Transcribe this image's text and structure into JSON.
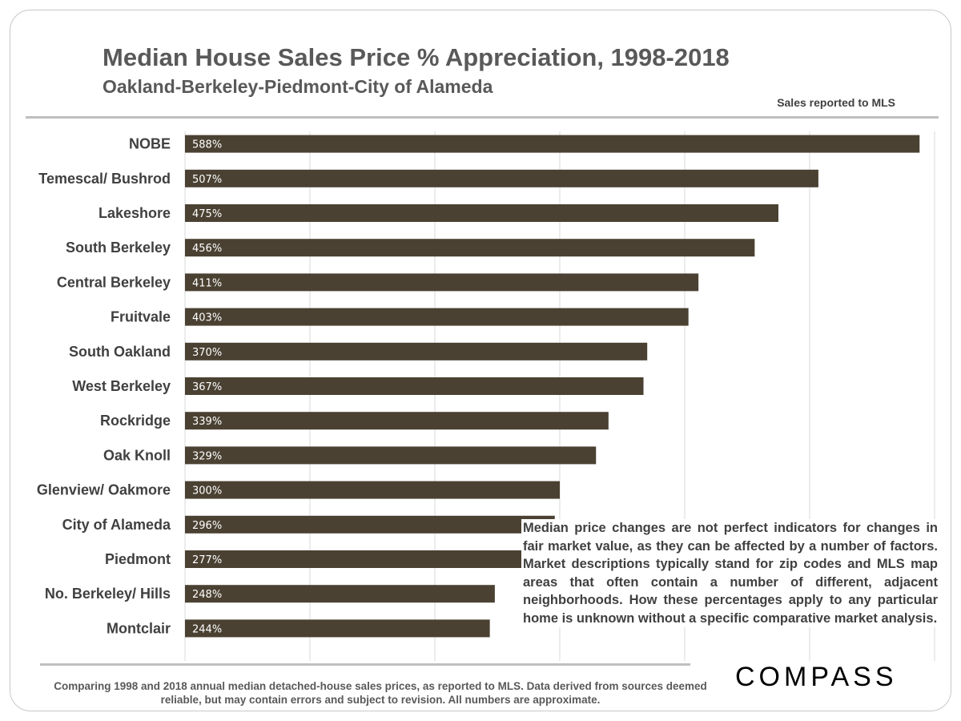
{
  "title": "Median House Sales Price % Appreciation, 1998-2018",
  "subtitle": "Oakland-Berkeley-Piedmont-City  of Alameda",
  "note": "Sales reported to MLS",
  "disclaimer": "Median price changes are not perfect indicators for changes in fair market value, as they can be affected by a number of factors. Market descriptions typically stand for zip codes and MLS map areas that often contain a number of different, adjacent neighborhoods. How these percentages apply to any particular home is unknown without a specific comparative market analysis.",
  "footer": "Comparing 1998 and 2018 annual median detached-house sales prices, as reported to MLS. Data derived from sources deemed reliable, but may contain errors and subject to revision. All numbers are approximate.",
  "logo_text": "COMPASS",
  "colors": {
    "bar": "#4a4132",
    "grid": "#d9d9d9",
    "text": "#404040"
  },
  "chart_data": {
    "type": "bar",
    "orientation": "horizontal",
    "categories": [
      "NOBE",
      "Temescal/ Bushrod",
      "Lakeshore",
      "South Berkeley",
      "Central Berkeley",
      "Fruitvale",
      "South Oakland",
      "West Berkeley",
      "Rockridge",
      "Oak Knoll",
      "Glenview/ Oakmore",
      "City of Alameda",
      "Piedmont",
      "No. Berkeley/ Hills",
      "Montclair"
    ],
    "values": [
      588,
      507,
      475,
      456,
      411,
      403,
      370,
      367,
      339,
      329,
      300,
      296,
      277,
      248,
      244
    ],
    "value_labels": [
      "588%",
      "507%",
      "475%",
      "456%",
      "411%",
      "403%",
      "370%",
      "367%",
      "339%",
      "329%",
      "300%",
      "296%",
      "277%",
      "248%",
      "244%"
    ],
    "xlim": [
      0,
      600
    ],
    "grid": true,
    "title": "Median House Sales Price % Appreciation, 1998-2018",
    "xlabel": "",
    "ylabel": ""
  }
}
